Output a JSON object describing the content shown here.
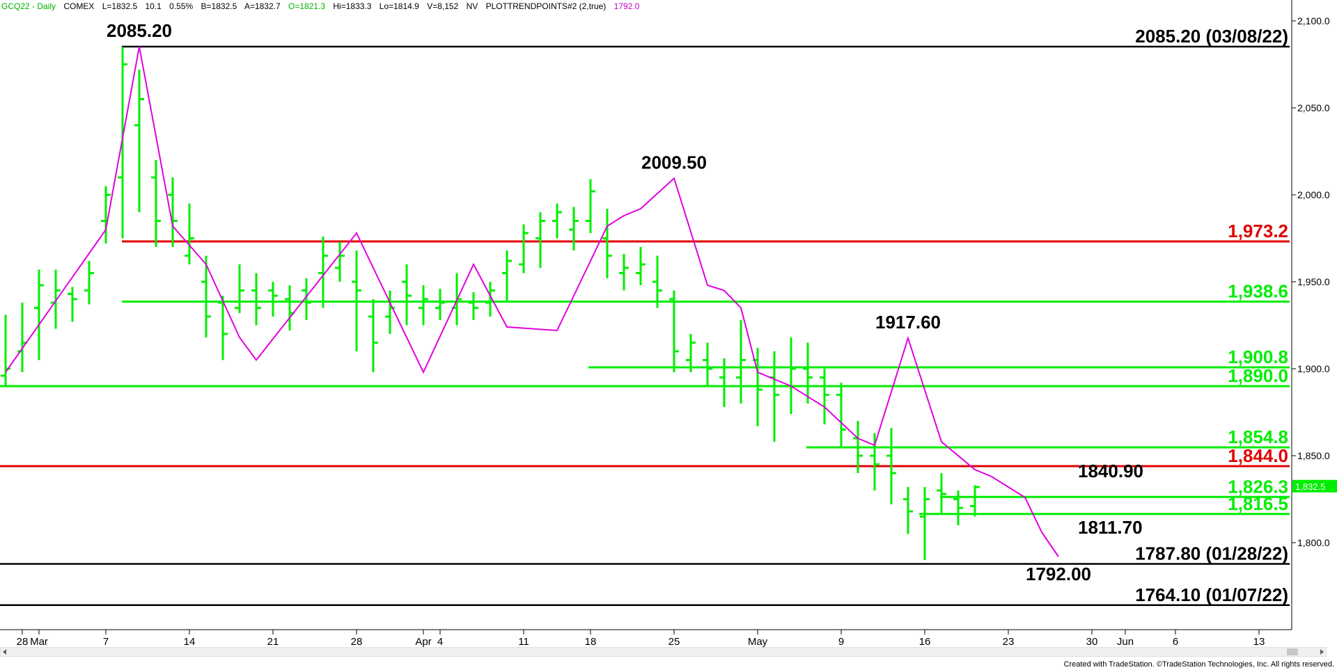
{
  "header": {
    "symbol": "GCQ22 - Daily",
    "exchange": "COMEX",
    "last": "L=1832.5",
    "change": "10.1",
    "change_pct": "0.55%",
    "bid": "B=1832.5",
    "ask": "A=1832.7",
    "open": "O=1821.3",
    "high": "Hi=1833.3",
    "low": "Lo=1814.9",
    "volume": "V=8,152",
    "nv": "NV",
    "study": "PLOTTRENDPOINTS#2 (2,true)",
    "study_value": "1792.0"
  },
  "colors": {
    "bar": "#00ee00",
    "trend": "#e000e0",
    "support_green": "#00ee00",
    "resistance_red": "#e00000",
    "reference_black": "#000000",
    "last_price_tag": "#00ee00"
  },
  "footer": "Created with TradeStation. ©TradeStation Technologies, Inc. All rights reserved.",
  "chart_data": {
    "type": "ohlc",
    "title": "",
    "ylim": [
      1740,
      2110
    ],
    "y_ticks": [
      "2,100.0",
      "2,050.0",
      "2,000.0",
      "1,950.0",
      "1,900.0",
      "1,850.0",
      "1,800.0"
    ],
    "y_tick_values": [
      2100,
      2050,
      2000,
      1950,
      1900,
      1850,
      1800
    ],
    "x_ticks": [
      {
        "label": "28",
        "i": 1
      },
      {
        "label": "Mar",
        "i": 2
      },
      {
        "label": "7",
        "i": 6
      },
      {
        "label": "14",
        "i": 11
      },
      {
        "label": "21",
        "i": 16
      },
      {
        "label": "28",
        "i": 21
      },
      {
        "label": "Apr",
        "i": 25
      },
      {
        "label": "4",
        "i": 26
      },
      {
        "label": "11",
        "i": 31
      },
      {
        "label": "18",
        "i": 35
      },
      {
        "label": "25",
        "i": 40
      },
      {
        "label": "May",
        "i": 45
      },
      {
        "label": "9",
        "i": 50
      },
      {
        "label": "16",
        "i": 55
      },
      {
        "label": "23",
        "i": 60
      },
      {
        "label": "30",
        "i": 65
      },
      {
        "label": "Jun",
        "i": 67
      },
      {
        "label": "6",
        "i": 70
      },
      {
        "label": "13",
        "i": 75
      }
    ],
    "bars": [
      [
        1896,
        1931,
        1890,
        1900
      ],
      [
        1910,
        1938,
        1898,
        1915
      ],
      [
        1935,
        1957,
        1905,
        1948
      ],
      [
        1938,
        1957,
        1923,
        1945
      ],
      [
        1943,
        1947,
        1927,
        1940
      ],
      [
        1945,
        1962,
        1937,
        1955
      ],
      [
        1985,
        2005,
        1972,
        2000
      ],
      [
        2010,
        2085,
        1975,
        2075
      ],
      [
        2040,
        2072,
        1990,
        2055
      ],
      [
        2010,
        2020,
        1970,
        1985
      ],
      [
        2000,
        2010,
        1970,
        1985
      ],
      [
        1965,
        1995,
        1960,
        1975
      ],
      [
        1950,
        1965,
        1918,
        1930
      ],
      [
        1938,
        1942,
        1905,
        1920
      ],
      [
        1935,
        1960,
        1932,
        1945
      ],
      [
        1945,
        1955,
        1925,
        1935
      ],
      [
        1945,
        1950,
        1930,
        1942
      ],
      [
        1940,
        1948,
        1922,
        1932
      ],
      [
        1945,
        1952,
        1928,
        1938
      ],
      [
        1955,
        1976,
        1935,
        1965
      ],
      [
        1958,
        1973,
        1950,
        1965
      ],
      [
        1950,
        1968,
        1910,
        1945
      ],
      [
        1930,
        1940,
        1898,
        1915
      ],
      [
        1930,
        1945,
        1920,
        1935
      ],
      [
        1950,
        1960,
        1925,
        1942
      ],
      [
        1935,
        1948,
        1925,
        1940
      ],
      [
        1935,
        1946,
        1928,
        1938
      ],
      [
        1935,
        1955,
        1925,
        1940
      ],
      [
        1938,
        1944,
        1928,
        1935
      ],
      [
        1938,
        1950,
        1930,
        1945
      ],
      [
        1955,
        1968,
        1938,
        1962
      ],
      [
        1960,
        1983,
        1955,
        1978
      ],
      [
        1975,
        1990,
        1958,
        1985
      ],
      [
        1985,
        1995,
        1975,
        1990
      ],
      [
        1980,
        1993,
        1968,
        1985
      ],
      [
        1985,
        2009,
        1978,
        2002
      ],
      [
        1975,
        1992,
        1952,
        1965
      ],
      [
        1955,
        1966,
        1945,
        1958
      ],
      [
        1955,
        1970,
        1948,
        1960
      ],
      [
        1950,
        1965,
        1935,
        1945
      ],
      [
        1940,
        1945,
        1898,
        1910
      ],
      [
        1905,
        1920,
        1898,
        1915
      ],
      [
        1905,
        1915,
        1890,
        1900
      ],
      [
        1895,
        1906,
        1878,
        1890
      ],
      [
        1895,
        1928,
        1880,
        1905
      ],
      [
        1905,
        1912,
        1867,
        1888
      ],
      [
        1895,
        1910,
        1858,
        1885
      ],
      [
        1890,
        1918,
        1874,
        1900
      ],
      [
        1900,
        1915,
        1880,
        1895
      ],
      [
        1895,
        1900,
        1868,
        1885
      ],
      [
        1885,
        1892,
        1855,
        1865
      ],
      [
        1860,
        1870,
        1840,
        1850
      ],
      [
        1850,
        1863,
        1830,
        1845
      ],
      [
        1850,
        1866,
        1822,
        1840
      ],
      [
        1825,
        1832,
        1805,
        1818
      ],
      [
        1815,
        1832,
        1790,
        1825
      ],
      [
        1830,
        1840,
        1816,
        1828
      ],
      [
        1825,
        1830,
        1810,
        1820
      ],
      [
        1821,
        1833,
        1815,
        1832
      ]
    ],
    "trend_points": [
      {
        "i": 0,
        "v": 1898
      },
      {
        "i": 6,
        "v": 1980
      },
      {
        "i": 8,
        "v": 2085.2,
        "label": "2085.20"
      },
      {
        "i": 10,
        "v": 1982
      },
      {
        "i": 12,
        "v": 1960
      },
      {
        "i": 14,
        "v": 1918
      },
      {
        "i": 15,
        "v": 1905
      },
      {
        "i": 21,
        "v": 1978
      },
      {
        "i": 25,
        "v": 1898
      },
      {
        "i": 28,
        "v": 1960
      },
      {
        "i": 30,
        "v": 1924
      },
      {
        "i": 33,
        "v": 1922
      },
      {
        "i": 36,
        "v": 1982
      },
      {
        "i": 37,
        "v": 1988
      },
      {
        "i": 38,
        "v": 1992
      },
      {
        "i": 40,
        "v": 2009.5,
        "label": "2009.50"
      },
      {
        "i": 42,
        "v": 1948
      },
      {
        "i": 43,
        "v": 1945
      },
      {
        "i": 44,
        "v": 1935
      },
      {
        "i": 45,
        "v": 1898
      },
      {
        "i": 47,
        "v": 1890
      },
      {
        "i": 49,
        "v": 1878
      },
      {
        "i": 51,
        "v": 1860
      },
      {
        "i": 52,
        "v": 1856
      },
      {
        "i": 54,
        "v": 1917.6,
        "label": "1917.60"
      },
      {
        "i": 56,
        "v": 1858
      },
      {
        "i": 58,
        "v": 1842
      },
      {
        "i": 59,
        "v": 1838
      },
      {
        "i": 61,
        "v": 1826
      },
      {
        "i": 62,
        "v": 1806
      },
      {
        "i": 63,
        "v": 1792,
        "label": "1792.00"
      }
    ],
    "extra_labels": [
      {
        "text": "1840.90",
        "i": 64,
        "v": 1840.9
      },
      {
        "text": "1811.70",
        "i": 64,
        "v": 1811.7
      }
    ],
    "levels": [
      {
        "value": 2085.2,
        "label": "2085.20 (03/08/22)",
        "color": "black"
      },
      {
        "value": 1973.2,
        "label": "1,973.2",
        "color": "red"
      },
      {
        "value": 1938.6,
        "label": "1,938.6",
        "color": "green"
      },
      {
        "value": 1900.8,
        "label": "1,900.8",
        "color": "green"
      },
      {
        "value": 1890.0,
        "label": "1,890.0",
        "color": "green"
      },
      {
        "value": 1854.8,
        "label": "1,854.8",
        "color": "green"
      },
      {
        "value": 1844.0,
        "label": "1,844.0",
        "color": "red"
      },
      {
        "value": 1826.3,
        "label": "1,826.3",
        "color": "green"
      },
      {
        "value": 1816.5,
        "label": "1,816.5",
        "color": "green"
      },
      {
        "value": 1787.8,
        "label": "1787.80 (01/28/22)",
        "color": "black"
      },
      {
        "value": 1764.1,
        "label": "1764.10 (01/07/22)",
        "color": "black"
      }
    ],
    "last_price": {
      "value": 1832.5,
      "label": "1,832.5"
    }
  }
}
